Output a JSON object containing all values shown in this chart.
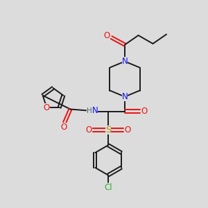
{
  "bg_color": "#dcdcdc",
  "bond_color": "#1a1a1a",
  "N_color": "#1010ee",
  "O_color": "#ee1010",
  "S_color": "#b8960a",
  "Cl_color": "#30b030",
  "H_color": "#407070",
  "lw": 1.4,
  "fs": 8.5,
  "xlim": [
    0,
    10
  ],
  "ylim": [
    0,
    10
  ]
}
